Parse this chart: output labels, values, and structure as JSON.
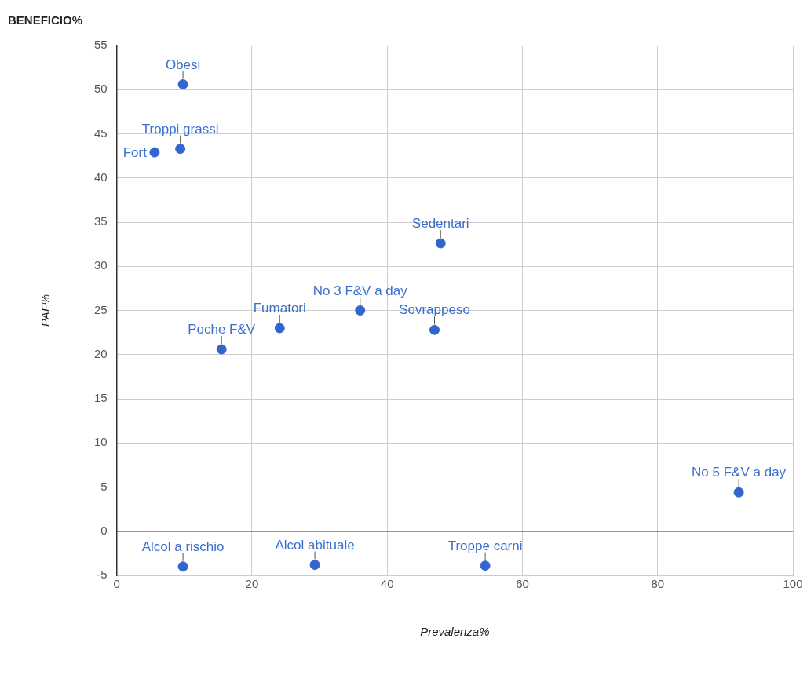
{
  "chart_data": {
    "type": "scatter",
    "title": "BENEFICIO%",
    "xlabel": "Prevalenza%",
    "ylabel": "PAF%",
    "series": [
      {
        "color": "#3366cc",
        "x": [
          9.8,
          5.6,
          9.4,
          47.9,
          36.0,
          24.1,
          47.0,
          15.5,
          92.0,
          9.8,
          29.3,
          54.5
        ],
        "values": [
          50.6,
          42.9,
          43.3,
          32.6,
          25.0,
          23.0,
          22.8,
          20.6,
          4.4,
          -4.0,
          -3.8,
          -3.9
        ]
      }
    ],
    "annotations": [
      {
        "text": "Obesi",
        "x": 9.8,
        "y": 50.6
      },
      {
        "text": "Fort",
        "x": 5.6,
        "y": 42.9
      },
      {
        "text": "Troppi grassi",
        "x": 9.4,
        "y": 43.3
      },
      {
        "text": "Sedentari",
        "x": 47.9,
        "y": 32.6
      },
      {
        "text": "No 3 F&V a day",
        "x": 36.0,
        "y": 25.0
      },
      {
        "text": "Fumatori",
        "x": 24.1,
        "y": 23.0
      },
      {
        "text": "Sovrappeso",
        "x": 47.0,
        "y": 22.8
      },
      {
        "text": "Poche F&V",
        "x": 15.5,
        "y": 20.6
      },
      {
        "text": "No 5 F&V a day",
        "x": 92.0,
        "y": 4.4
      },
      {
        "text": "Alcol a rischio",
        "x": 9.8,
        "y": -4.0
      },
      {
        "text": "Alcol abituale",
        "x": 29.3,
        "y": -3.8
      },
      {
        "text": "Troppe carni",
        "x": 54.5,
        "y": -3.9
      }
    ],
    "xlim": [
      0,
      100
    ],
    "xticks": [
      0,
      20,
      40,
      60,
      80,
      100
    ],
    "ylim": [
      -5,
      55
    ],
    "yticks": [
      -5,
      0,
      5,
      10,
      15,
      20,
      25,
      30,
      35,
      40,
      45,
      50,
      55
    ],
    "grid": true,
    "marker": "circle",
    "legend": false
  }
}
